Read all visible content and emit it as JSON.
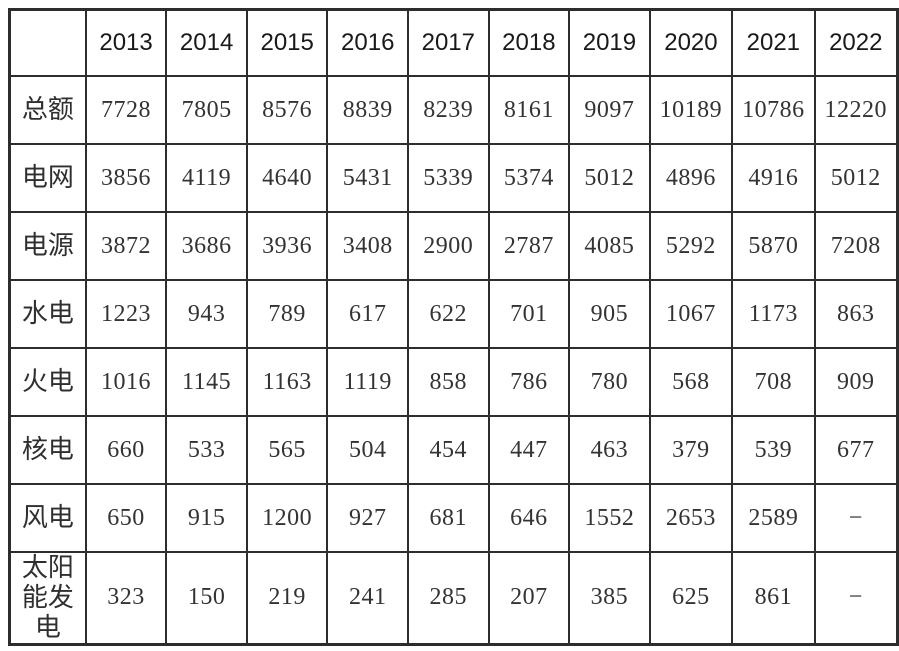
{
  "colors": {
    "background": "#ffffff",
    "border": "#2d2d2d",
    "header_text": "#191919",
    "cell_text": "#333333"
  },
  "table": {
    "corner_label": "",
    "columns": [
      "2013",
      "2014",
      "2015",
      "2016",
      "2017",
      "2018",
      "2019",
      "2020",
      "2021",
      "2022"
    ],
    "rows": [
      {
        "label": "总额",
        "values": [
          "7728",
          "7805",
          "8576",
          "8839",
          "8239",
          "8161",
          "9097",
          "10189",
          "10786",
          "12220"
        ]
      },
      {
        "label": "电网",
        "values": [
          "3856",
          "4119",
          "4640",
          "5431",
          "5339",
          "5374",
          "5012",
          "4896",
          "4916",
          "5012"
        ]
      },
      {
        "label": "电源",
        "values": [
          "3872",
          "3686",
          "3936",
          "3408",
          "2900",
          "2787",
          "4085",
          "5292",
          "5870",
          "7208"
        ]
      },
      {
        "label": "水电",
        "values": [
          "1223",
          "943",
          "789",
          "617",
          "622",
          "701",
          "905",
          "1067",
          "1173",
          "863"
        ]
      },
      {
        "label": "火电",
        "values": [
          "1016",
          "1145",
          "1163",
          "1119",
          "858",
          "786",
          "780",
          "568",
          "708",
          "909"
        ]
      },
      {
        "label": "核电",
        "values": [
          "660",
          "533",
          "565",
          "504",
          "454",
          "447",
          "463",
          "379",
          "539",
          "677"
        ]
      },
      {
        "label": "风电",
        "values": [
          "650",
          "915",
          "1200",
          "927",
          "681",
          "646",
          "1552",
          "2653",
          "2589",
          "−"
        ]
      },
      {
        "label": "太阳能发电",
        "values": [
          "323",
          "150",
          "219",
          "241",
          "285",
          "207",
          "385",
          "625",
          "861",
          "−"
        ]
      }
    ]
  }
}
